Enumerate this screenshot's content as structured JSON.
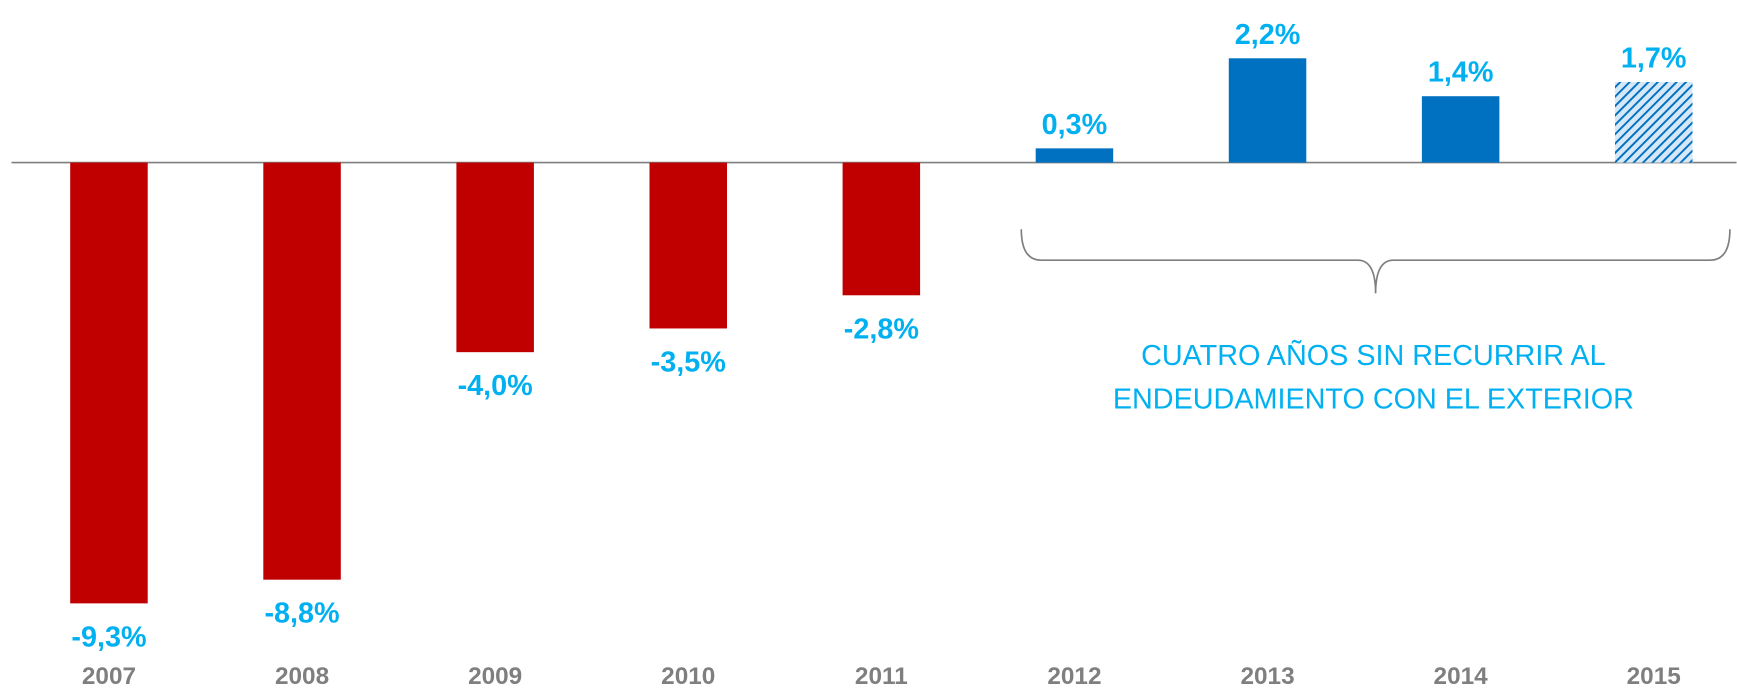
{
  "chart_data": {
    "type": "bar",
    "categories": [
      "2007",
      "2008",
      "2009",
      "2010",
      "2011",
      "2012",
      "2013",
      "2014",
      "2015"
    ],
    "values": [
      -9.3,
      -8.8,
      -4.0,
      -3.5,
      -2.8,
      0.3,
      2.2,
      1.4,
      1.7
    ],
    "value_labels": [
      "-9,3%",
      "-8,8%",
      "-4,0%",
      "-3,5%",
      "-2,8%",
      "0,3%",
      "2,2%",
      "1,4%",
      "1,7%"
    ],
    "colors": [
      "#c00000",
      "#c00000",
      "#c00000",
      "#c00000",
      "#c00000",
      "#0070c0",
      "#0070c0",
      "#0070c0",
      "#0070c0"
    ],
    "bar_styles": [
      "solid",
      "solid",
      "solid",
      "solid",
      "solid",
      "solid",
      "solid",
      "solid",
      "hatched"
    ],
    "ylim": [
      -11.17,
      3.43
    ],
    "annotation": [
      "CUATRO AÑOS SIN RECURRIR AL",
      "ENDEUDAMIENTO CON EL EXTERIOR"
    ]
  }
}
